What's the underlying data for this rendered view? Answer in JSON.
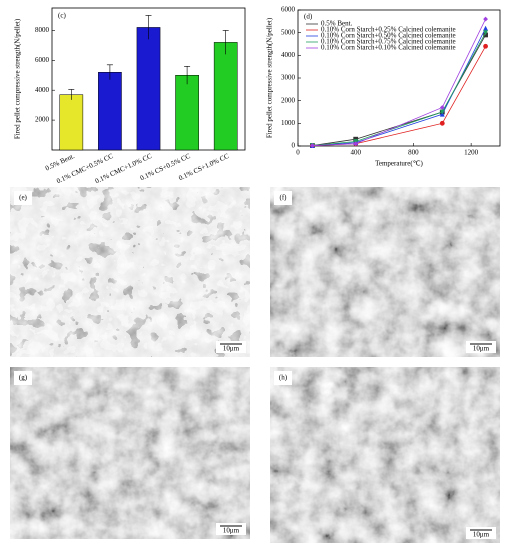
{
  "chart_data": [
    {
      "type": "bar",
      "panel": "(c)",
      "ylabel": "Fired pellet compressive strength(N/pellet)",
      "categories": [
        "0.5% Bent.",
        "0.1% CMC+0.5% CC",
        "0.1% CMC+1.0% CC",
        "0.1% CS+0.5% CC",
        "0.1% CS+1.0% CC"
      ],
      "values": [
        3700,
        5200,
        8200,
        5000,
        7200
      ],
      "errors": [
        350,
        500,
        800,
        600,
        800
      ],
      "colors": [
        "#e6e62a",
        "#1a1ad0",
        "#1a1ad0",
        "#22cc22",
        "#22cc22"
      ],
      "ylim": [
        0,
        9500
      ],
      "yticks": [
        2000,
        4000,
        6000,
        8000
      ]
    },
    {
      "type": "line",
      "panel": "(d)",
      "ylabel": "Fired pellet compressive strength(N/pellet)",
      "xlabel": "Temperature(℃)",
      "x": [
        100,
        400,
        1000,
        1300
      ],
      "series": [
        {
          "name": "0.5% Bent.",
          "color": "#333333",
          "marker": "square",
          "values": [
            20,
            300,
            1500,
            4900
          ]
        },
        {
          "name": "0.10% Corn Starch+0.25% Calcined colemanite",
          "color": "#e02020",
          "marker": "circle",
          "values": [
            20,
            100,
            1000,
            4400
          ]
        },
        {
          "name": "0.10% Corn Starch+0.50% Calcined colemanite",
          "color": "#2040e0",
          "marker": "triangle",
          "values": [
            20,
            150,
            1400,
            5200
          ]
        },
        {
          "name": "0.10% Corn Starch+0.75% Calcined colemanite",
          "color": "#20a060",
          "marker": "down",
          "values": [
            20,
            200,
            1500,
            5000
          ]
        },
        {
          "name": "0.10% Corn Starch+0.10% Calcined colemanite",
          "color": "#a040e0",
          "marker": "diamond",
          "values": [
            20,
            100,
            1700,
            5600
          ]
        }
      ],
      "xlim": [
        0,
        1400
      ],
      "xticks": [
        0,
        400,
        800,
        1200
      ],
      "ylim": [
        0,
        6000
      ],
      "yticks": [
        0,
        1000,
        2000,
        3000,
        4000,
        5000,
        6000
      ]
    }
  ],
  "images": [
    {
      "label": "(e)",
      "scale": "10μm"
    },
    {
      "label": "(f)",
      "scale": "10μm"
    },
    {
      "label": "(g)",
      "scale": "10μm"
    },
    {
      "label": "(h)",
      "scale": "10μm"
    }
  ]
}
